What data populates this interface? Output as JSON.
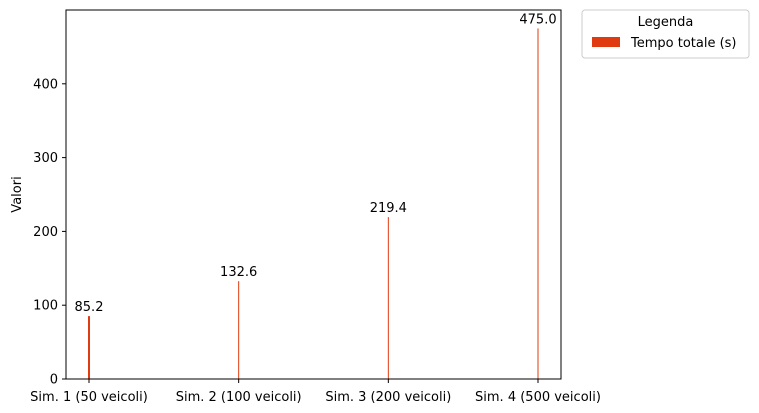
{
  "chart_data": {
    "type": "bar",
    "categories": [
      "Sim. 1 (50 veicoli)",
      "Sim. 2 (100 veicoli)",
      "Sim. 3 (200 veicoli)",
      "Sim. 4 (500 veicoli)"
    ],
    "series": [
      {
        "name": "Tempo totale (s)",
        "values": [
          85.2,
          132.6,
          219.4,
          475.0
        ],
        "value_labels": [
          "85.2",
          "132.6",
          "219.4",
          "475.0"
        ],
        "color": "#e03b10"
      }
    ],
    "ylabel": "Valori",
    "ylim": [
      0,
      500
    ],
    "yticks": [
      0,
      100,
      200,
      300,
      400
    ],
    "grid": false,
    "legend": {
      "title": "Legenda",
      "placement": "outside-top-right"
    }
  }
}
